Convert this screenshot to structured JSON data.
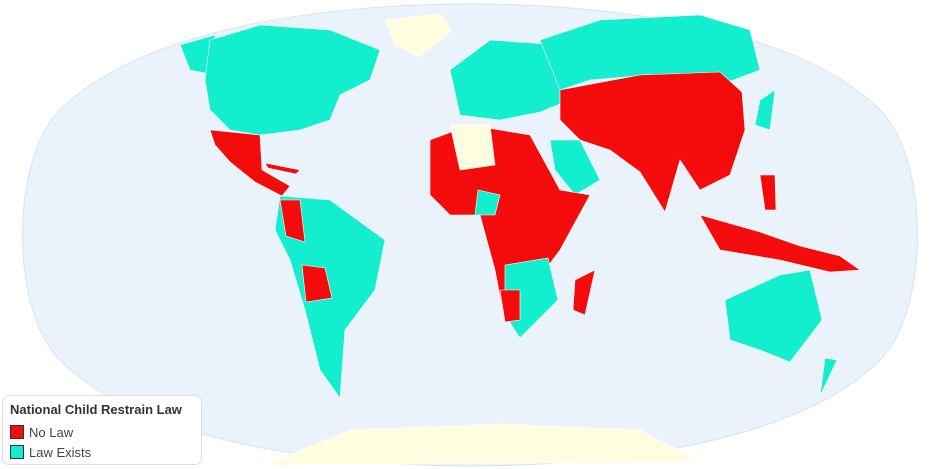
{
  "legend": {
    "title": "National Child Restrain Law",
    "items": [
      {
        "label": "No Law",
        "color": "#f40c0c"
      },
      {
        "label": "Law Exists",
        "color": "#13eecf"
      }
    ]
  },
  "colors": {
    "ocean": "#eaf3fb",
    "no_data": "#fffde0",
    "border": "#888888"
  }
}
